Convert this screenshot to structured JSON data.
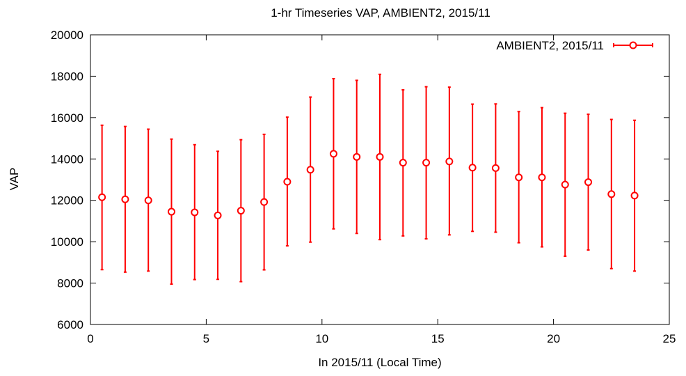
{
  "chart_data": {
    "type": "scatter",
    "title": "1-hr Timeseries VAP, AMBIENT2, 2015/11",
    "xlabel": "In 2015/11 (Local Time)",
    "ylabel": "VAP",
    "xlim": [
      0,
      25
    ],
    "ylim": [
      6000,
      20000
    ],
    "xticks": [
      0,
      5,
      10,
      15,
      20,
      25
    ],
    "yticks": [
      6000,
      8000,
      10000,
      12000,
      14000,
      16000,
      18000,
      20000
    ],
    "grid": false,
    "legend_position": "top-right",
    "error_bars": true,
    "series": [
      {
        "name": "AMBIENT2, 2015/11",
        "color": "#ff0000",
        "marker": "open-circle",
        "x": [
          0.5,
          1.5,
          2.5,
          3.5,
          4.5,
          5.5,
          6.5,
          7.5,
          8.5,
          9.5,
          10.5,
          11.5,
          12.5,
          13.5,
          14.5,
          15.5,
          16.5,
          17.5,
          18.5,
          19.5,
          20.5,
          21.5,
          22.5,
          23.5
        ],
        "y": [
          12150,
          12050,
          12000,
          11450,
          11420,
          11270,
          11500,
          11920,
          12900,
          13480,
          14250,
          14100,
          14100,
          13820,
          13820,
          13880,
          13580,
          13560,
          13110,
          13110,
          12760,
          12880,
          12300,
          12230
        ],
        "y_low": [
          8650,
          8530,
          8580,
          7950,
          8170,
          8180,
          8070,
          8640,
          9800,
          9980,
          10620,
          10400,
          10100,
          10280,
          10140,
          10330,
          10500,
          10460,
          9950,
          9750,
          9300,
          9600,
          8700,
          8580
        ],
        "y_high": [
          15630,
          15570,
          15440,
          14960,
          14690,
          14370,
          14930,
          15190,
          16020,
          16990,
          17880,
          17800,
          18090,
          17340,
          17490,
          17470,
          16650,
          16660,
          16290,
          16480,
          16210,
          16160,
          15910,
          15870
        ]
      }
    ]
  }
}
